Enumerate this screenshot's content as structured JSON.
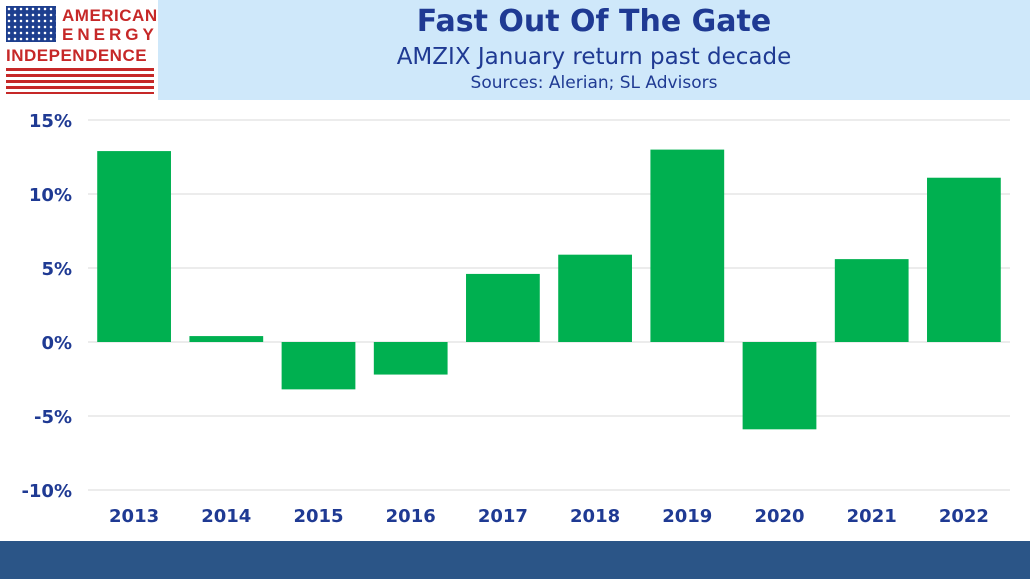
{
  "header": {
    "title": "Fast Out Of The Gate",
    "subtitle": "AMZIX January return past decade",
    "source": "Sources: Alerian; SL Advisors"
  },
  "logo": {
    "line1": "AMERICAN",
    "line2": "ENERGY",
    "line3": "INDEPENDENCE"
  },
  "colors": {
    "bar": "#00b050",
    "header_bg": "#cfe8fa",
    "title": "#1f3a93",
    "footer": "#2b5587",
    "logo_red": "#c62828"
  },
  "chart_data": {
    "type": "bar",
    "title": "Fast Out Of The Gate",
    "subtitle": "AMZIX January return past decade",
    "xlabel": "",
    "ylabel": "",
    "categories": [
      "2013",
      "2014",
      "2015",
      "2016",
      "2017",
      "2018",
      "2019",
      "2020",
      "2021",
      "2022"
    ],
    "values": [
      12.9,
      0.4,
      -3.2,
      -2.2,
      4.6,
      5.9,
      13.0,
      -5.9,
      5.6,
      11.1
    ],
    "ylim": [
      -10,
      15
    ],
    "yticks": [
      15,
      10,
      5,
      0,
      -5,
      -10
    ],
    "ytick_labels": [
      "15%",
      "10%",
      "5%",
      "0%",
      "-5%",
      "-10%"
    ],
    "grid": true,
    "legend": "none"
  }
}
